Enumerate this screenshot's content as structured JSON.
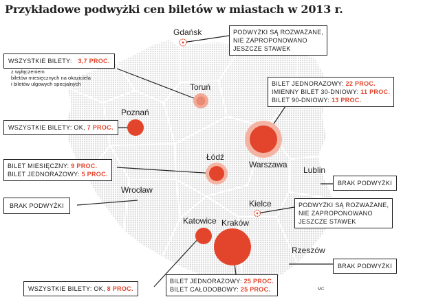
{
  "title": "Przykładowe podwyżki cen biletów w miastach w 2013 r.",
  "colors": {
    "accent": "#e2452c",
    "accent_light": "#f2a896",
    "map_dots": "#d4d4d4",
    "text": "#1a1a1a"
  },
  "cities": {
    "gdansk": "Gdańsk",
    "torun": "Toruń",
    "poznan": "Poznań",
    "lodz": "Łódź",
    "warszawa": "Warszawa",
    "lublin": "Lublin",
    "wroclaw": "Wrocław",
    "kielce": "Kielce",
    "katowice": "Katowice",
    "krakow": "Kraków",
    "rzeszow": "Rzeszów"
  },
  "boxes": {
    "gdansk": {
      "l1": "Podwyżki są rozważane,",
      "l2": "nie zaproponowano",
      "l3": "jeszcze stawek"
    },
    "torun": {
      "label": "Wszystkie bilety:",
      "value": "3,7 proc.",
      "note1": "z wyłączeniem",
      "note2": "biletów miesięcznych na okaziciela",
      "note3": "i biletów ulgowych specjalnych"
    },
    "warszawa": {
      "l1": "Bilet jednorazowy:",
      "v1": "22 proc.",
      "l2": "Imienny bilet 30-dniowy:",
      "v2": "11 proc.",
      "l3": "Bilet 90-dniowy:",
      "v3": "13 proc."
    },
    "poznan": {
      "label": "Wszystkie bilety: ok,",
      "value": "7 proc."
    },
    "lodz": {
      "l1": "Bilet miesięczny:",
      "v1": "9 proc.",
      "l2": "Bilet jednorazowy:",
      "v2": "5 proc."
    },
    "lublin": {
      "label": "Brak podwyżki"
    },
    "wroclaw": {
      "label": "Brak podwyżki"
    },
    "kielce": {
      "l1": "Podwyżki są rozważane,",
      "l2": "nie zaproponowano",
      "l3": "jeszcze stawek"
    },
    "rzeszow": {
      "label": "Brak podwyżki"
    },
    "katowice": {
      "label": "Wszystkie bilety: ok,",
      "value": "8 proc."
    },
    "krakow": {
      "l1": "Bilet jednorazowy:",
      "v1": "25 proc.",
      "l2": "Bilet całodobowy:",
      "v2": "25 proc."
    }
  },
  "credit": "MC"
}
